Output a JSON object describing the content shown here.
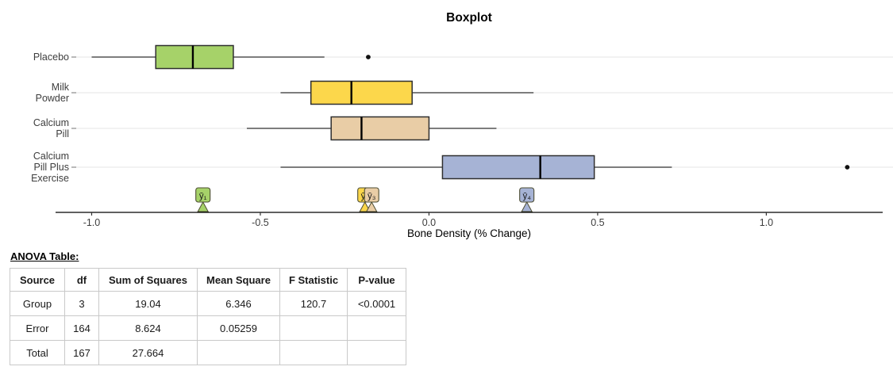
{
  "chart_data": {
    "type": "boxplot",
    "orientation": "horizontal",
    "title": "Boxplot",
    "xlabel": "Bone Density (% Change)",
    "xlim": [
      -1.107,
      1.345
    ],
    "xticks": [
      -1.0,
      -0.5,
      0.0,
      0.5,
      1.0
    ],
    "xtick_labels": [
      "-1.0",
      "-0.5",
      "0.0",
      "0.5",
      "1.0"
    ],
    "grid": "light horizontal line per category",
    "legend": "none",
    "series": [
      {
        "name": "Placebo",
        "label_lines": [
          "Placebo"
        ],
        "color": "#a6d269",
        "whisker_low": -1.0,
        "q1": -0.81,
        "median": -0.7,
        "q3": -0.58,
        "whisker_high": -0.31,
        "outliers": [
          -0.18
        ],
        "mean": -0.67
      },
      {
        "name": "Milk Powder",
        "label_lines": [
          "Milk",
          "Powder"
        ],
        "color": "#fcd74b",
        "whisker_low": -0.44,
        "q1": -0.35,
        "median": -0.23,
        "q3": -0.05,
        "whisker_high": 0.31,
        "outliers": [],
        "mean": -0.19
      },
      {
        "name": "Calcium Pill",
        "label_lines": [
          "Calcium",
          "Pill"
        ],
        "color": "#e9cda6",
        "whisker_low": -0.54,
        "q1": -0.29,
        "median": -0.2,
        "q3": 0.0,
        "whisker_high": 0.2,
        "outliers": [],
        "mean": -0.17
      },
      {
        "name": "Calcium Pill Plus Exercise",
        "label_lines": [
          "Calcium",
          "Pill Plus",
          "Exercise"
        ],
        "color": "#a6b3d5",
        "whisker_low": -0.44,
        "q1": 0.04,
        "median": 0.33,
        "q3": 0.49,
        "whisker_high": 0.72,
        "outliers": [
          1.24
        ],
        "mean": 0.29
      }
    ],
    "mean_markers": [
      {
        "label": "ȳ₁",
        "value": -0.67,
        "color": "#a6d269",
        "series": "Placebo"
      },
      {
        "label": "ȳ₂",
        "value": -0.19,
        "color": "#fcd74b",
        "series": "Milk Powder",
        "note": "mostly hidden behind ȳ₃"
      },
      {
        "label": "ȳ₃",
        "value": -0.17,
        "color": "#e9cda6",
        "series": "Calcium Pill"
      },
      {
        "label": "ȳ₄",
        "value": 0.29,
        "color": "#a6b3d5",
        "series": "Calcium Pill Plus Exercise"
      }
    ]
  },
  "anova": {
    "heading": "ANOVA Table:",
    "headers": [
      "Source",
      "df",
      "Sum of Squares",
      "Mean Square",
      "F Statistic",
      "P-value"
    ],
    "rows": [
      [
        "Group",
        "3",
        "19.04",
        "6.346",
        "120.7",
        "<0.0001"
      ],
      [
        "Error",
        "164",
        "8.624",
        "0.05259",
        "",
        ""
      ],
      [
        "Total",
        "167",
        "27.664",
        "",
        "",
        ""
      ]
    ]
  },
  "colors": {
    "axis_line": "#000000",
    "whisker": "#333333",
    "box_border": "#2f2f2f",
    "median": "#000000",
    "gridline": "#ebebeb",
    "tick_label": "#3d3d3d",
    "category_label": "#3d3d3d",
    "outlier": "#111111",
    "table_border": "#c9c9c9"
  }
}
